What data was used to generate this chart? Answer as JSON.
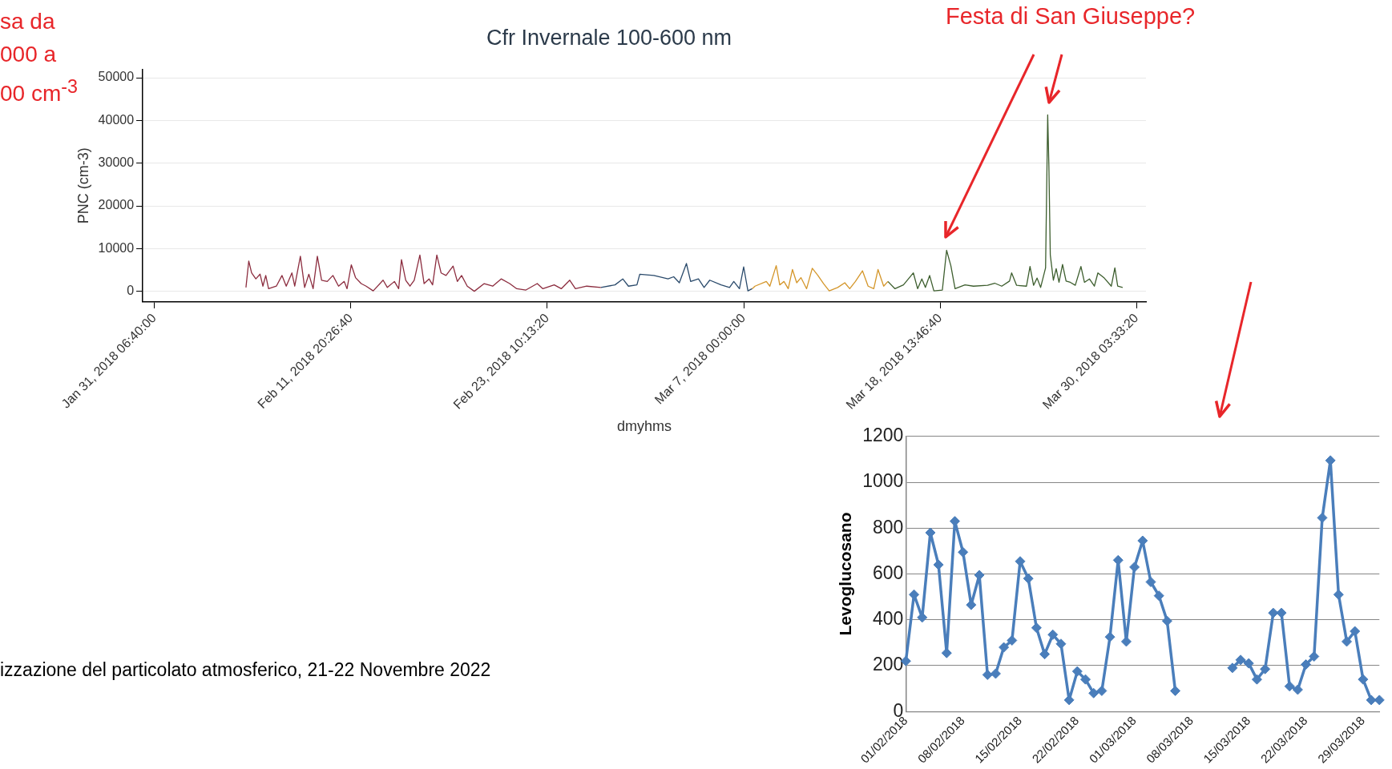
{
  "chart_data": [
    {
      "type": "line",
      "title": "Cfr Invernale 100-600 nm",
      "xlabel": "dmyhms",
      "ylabel": "PNC (cm-3)",
      "xlim": [
        "2018-01-30T14:00",
        "2018-03-30T17:00"
      ],
      "ylim": [
        -2500,
        52000
      ],
      "xticks": [
        {
          "value": "2018-01-31T06:40",
          "label": "Jan 31, 2018 06:40:00"
        },
        {
          "value": "2018-02-11T20:26:40",
          "label": "Feb 11, 2018 20:26:40"
        },
        {
          "value": "2018-02-23T10:13:20",
          "label": "Feb 23, 2018 10:13:20"
        },
        {
          "value": "2018-03-07T00:00",
          "label": "Mar 7, 2018 00:00:00"
        },
        {
          "value": "2018-03-18T13:46:40",
          "label": "Mar 18, 2018 13:46:40"
        },
        {
          "value": "2018-03-30T03:33:20",
          "label": "Mar 30, 2018 03:33:20"
        }
      ],
      "yticks": [
        0,
        10000,
        20000,
        30000,
        40000,
        50000
      ],
      "grid": "y",
      "series": [
        {
          "color": "#8c2d3f",
          "x": [
            "2018-02-05T16:00",
            "2018-02-05T20:00",
            "2018-02-06T00:00",
            "2018-02-06T06:00",
            "2018-02-06T12:00",
            "2018-02-06T16:00",
            "2018-02-06T20:00",
            "2018-02-07T00:00",
            "2018-02-07T11:00",
            "2018-02-07T19:00",
            "2018-02-08T01:00",
            "2018-02-08T09:00",
            "2018-02-08T13:00",
            "2018-02-08T21:00",
            "2018-02-09T03:00",
            "2018-02-09T09:00",
            "2018-02-09T15:00",
            "2018-02-09T21:00",
            "2018-02-10T03:00",
            "2018-02-10T11:00",
            "2018-02-10T19:00",
            "2018-02-11T03:00",
            "2018-02-11T11:00",
            "2018-02-11T15:00",
            "2018-02-11T21:00",
            "2018-02-12T03:00",
            "2018-02-12T11:00",
            "2018-02-12T18:00",
            "2018-02-13T04:00",
            "2018-02-13T18:00",
            "2018-02-14T00:00",
            "2018-02-14T10:00",
            "2018-02-14T16:00",
            "2018-02-14T20:00",
            "2018-02-15T02:00",
            "2018-02-15T08:00",
            "2018-02-15T14:00",
            "2018-02-15T22:00",
            "2018-02-16T04:00",
            "2018-02-16T11:00",
            "2018-02-16T16:00",
            "2018-02-16T22:00",
            "2018-02-17T04:00",
            "2018-02-17T11:00",
            "2018-02-17T21:00",
            "2018-02-18T03:00",
            "2018-02-18T09:00",
            "2018-02-18T17:00",
            "2018-02-19T03:00",
            "2018-02-19T17:00",
            "2018-02-20T05:00",
            "2018-02-20T17:00",
            "2018-02-21T05:00",
            "2018-02-21T15:00",
            "2018-02-22T04:00",
            "2018-02-22T20:00",
            "2018-02-23T04:00",
            "2018-02-23T20:00",
            "2018-02-24T06:00",
            "2018-02-24T18:00",
            "2018-02-25T02:00",
            "2018-02-25T18:00",
            "2018-02-26T14:00"
          ],
          "values": [
            900,
            7100,
            4300,
            2900,
            4000,
            1200,
            3700,
            600,
            1200,
            3700,
            1200,
            4300,
            1200,
            8200,
            900,
            4000,
            600,
            8200,
            2600,
            2300,
            3700,
            1200,
            2300,
            600,
            6200,
            3200,
            1800,
            1200,
            100,
            2600,
            900,
            2300,
            600,
            7400,
            2600,
            1200,
            2600,
            8500,
            1800,
            2900,
            1500,
            8500,
            4300,
            3700,
            5900,
            2300,
            3700,
            1200,
            0,
            1800,
            1200,
            2900,
            1800,
            600,
            300,
            1800,
            600,
            1500,
            600,
            2600,
            600,
            1200,
            900
          ]
        },
        {
          "color": "#2a4a6b",
          "x": [
            "2018-02-26T14:00",
            "2018-02-27T10:00",
            "2018-02-27T21:00",
            "2018-02-28T05:00",
            "2018-02-28T17:00",
            "2018-02-28T21:00",
            "2018-03-01T17:00",
            "2018-03-02T13:00",
            "2018-03-02T21:00",
            "2018-03-03T05:00",
            "2018-03-03T15:00",
            "2018-03-03T21:00",
            "2018-03-04T08:00",
            "2018-03-04T16:00",
            "2018-03-05T00:00",
            "2018-03-05T16:00",
            "2018-03-06T04:00",
            "2018-03-06T10:00",
            "2018-03-06T18:00",
            "2018-03-07T00:00",
            "2018-03-07T06:00",
            "2018-03-07T12:00"
          ],
          "values": [
            900,
            1500,
            2900,
            1200,
            1500,
            4000,
            3700,
            2900,
            3400,
            2000,
            6500,
            2300,
            2900,
            900,
            2600,
            1500,
            900,
            2300,
            600,
            5700,
            100,
            600
          ]
        },
        {
          "color": "#d4962a",
          "x": [
            "2018-03-07T12:00",
            "2018-03-07T16:00",
            "2018-03-08T08:00",
            "2018-03-08T13:00",
            "2018-03-08T22:00",
            "2018-03-09T03:00",
            "2018-03-09T09:00",
            "2018-03-09T15:00",
            "2018-03-09T21:00",
            "2018-03-10T03:00",
            "2018-03-10T09:00",
            "2018-03-10T17:00",
            "2018-03-11T01:00",
            "2018-03-11T09:00",
            "2018-03-11T17:00",
            "2018-03-12T01:00",
            "2018-03-12T13:00",
            "2018-03-12T23:00",
            "2018-03-13T06:00",
            "2018-03-13T14:00",
            "2018-03-14T00:00",
            "2018-03-14T08:00",
            "2018-03-14T16:00",
            "2018-03-14T22:00",
            "2018-03-15T06:00",
            "2018-03-15T12:00"
          ],
          "values": [
            600,
            1200,
            2300,
            1200,
            6000,
            1500,
            2300,
            600,
            5100,
            2000,
            3200,
            600,
            5400,
            3700,
            1800,
            100,
            900,
            2000,
            600,
            2300,
            4800,
            1200,
            600,
            5100,
            1200,
            2300
          ]
        },
        {
          "color": "#3d5e2e",
          "x": [
            "2018-03-15T12:00",
            "2018-03-15T22:00",
            "2018-03-16T10:00",
            "2018-03-17T00:00",
            "2018-03-17T06:00",
            "2018-03-17T12:00",
            "2018-03-17T17:00",
            "2018-03-17T23:00",
            "2018-03-18T05:00",
            "2018-03-18T17:00",
            "2018-03-18T23:00",
            "2018-03-19T05:00",
            "2018-03-19T11:00",
            "2018-03-20T01:00",
            "2018-03-20T13:00",
            "2018-03-21T09:00",
            "2018-03-21T19:00",
            "2018-03-22T05:00",
            "2018-03-22T16:00",
            "2018-03-22T19:00",
            "2018-03-23T02:00",
            "2018-03-23T16:00",
            "2018-03-23T21:00",
            "2018-03-24T02:00",
            "2018-03-24T07:00",
            "2018-03-24T12:00",
            "2018-03-24T19:00",
            "2018-03-24T22:00",
            "2018-03-24T23:40",
            "2018-03-25T01:40",
            "2018-03-25T06:00",
            "2018-03-25T10:00",
            "2018-03-25T14:00",
            "2018-03-25T19:00",
            "2018-03-26T00:00",
            "2018-03-26T06:00",
            "2018-03-26T13:00",
            "2018-03-26T21:00",
            "2018-03-27T02:00",
            "2018-03-27T09:00",
            "2018-03-27T16:00",
            "2018-03-27T21:00",
            "2018-03-28T06:00",
            "2018-03-28T16:00",
            "2018-03-28T21:00",
            "2018-03-29T01:00",
            "2018-03-29T08:00"
          ],
          "values": [
            2300,
            600,
            1500,
            4300,
            600,
            2900,
            900,
            3700,
            100,
            300,
            9600,
            6000,
            600,
            1500,
            1200,
            1400,
            1900,
            1200,
            2400,
            4300,
            1400,
            1200,
            5800,
            1400,
            3100,
            900,
            5500,
            41300,
            29400,
            8500,
            2600,
            5300,
            2100,
            6300,
            2400,
            2100,
            1400,
            5800,
            2100,
            2900,
            1200,
            4300,
            3100,
            1200,
            5500,
            1200,
            900
          ]
        }
      ],
      "annotations": [
        "Festa di San Giuseppe?",
        "sa da\n000 a\n00 cm$^{-3}$",
        "izzazione del particolato atmosferico, 21-22 Novembre 2022"
      ]
    },
    {
      "type": "line",
      "ylabel": "Levoglucosano",
      "marker": "diamond",
      "color": "#4a7ebb",
      "grid": "y",
      "ylim": [
        0,
        1200
      ],
      "yticks": [
        0,
        200,
        400,
        600,
        800,
        1000,
        1200
      ],
      "categories": [
        "01/02/2018",
        null,
        null,
        null,
        null,
        null,
        null,
        "08/02/2018",
        null,
        null,
        null,
        null,
        null,
        null,
        "15/02/2018",
        null,
        null,
        null,
        null,
        null,
        null,
        "22/02/2018",
        null,
        null,
        null,
        null,
        null,
        null,
        "01/03/2018",
        null,
        null,
        null,
        null,
        null,
        null,
        "08/03/2018",
        null,
        null,
        null,
        null,
        null,
        null,
        "15/03/2018",
        null,
        null,
        null,
        null,
        null,
        null,
        "22/03/2018",
        null,
        null,
        null,
        null,
        null,
        null,
        "29/03/2018",
        null,
        null
      ],
      "values": [
        220,
        510,
        410,
        780,
        640,
        255,
        830,
        695,
        465,
        595,
        160,
        165,
        280,
        310,
        655,
        580,
        365,
        250,
        335,
        295,
        50,
        175,
        140,
        80,
        90,
        325,
        660,
        305,
        630,
        745,
        565,
        505,
        395,
        90,
        null,
        null,
        null,
        null,
        null,
        null,
        190,
        225,
        210,
        140,
        185,
        430,
        430,
        110,
        95,
        205,
        240,
        845,
        1095,
        510,
        305,
        350,
        140,
        50,
        50
      ]
    }
  ]
}
